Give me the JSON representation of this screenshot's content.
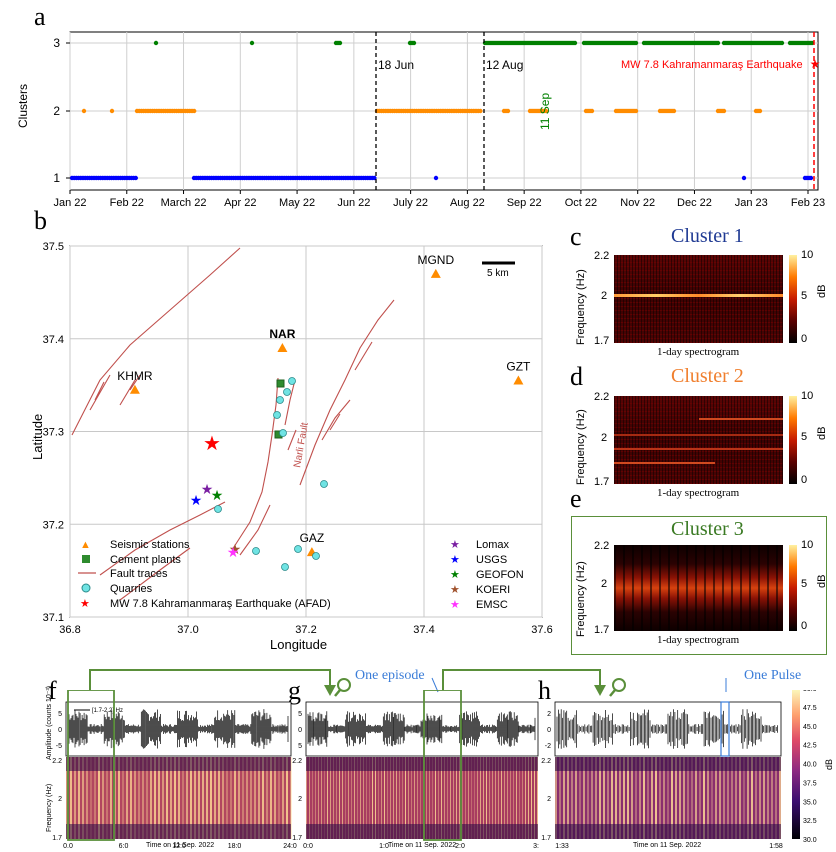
{
  "panels": {
    "a": {
      "label": "a",
      "ylabel": "Clusters",
      "yticks": [
        "1",
        "2",
        "3"
      ],
      "xticks": [
        "Jan 22",
        "Feb 22",
        "March 22",
        "Apr 22",
        "May 22",
        "Jun 22",
        "July 22",
        "Aug 22",
        "Sep 22",
        "Oct 22",
        "Nov 22",
        "Dec 22",
        "Jan 23",
        "Feb 23"
      ],
      "annotations": {
        "jun18": "18 Jun",
        "aug12": "12 Aug",
        "sep11": "11 Sep",
        "eq": "MW 7.8 Kahramanmaraş Earthquake"
      },
      "colors": {
        "c1": "#0000ff",
        "c2": "#ff8c00",
        "c3": "#008000",
        "eq": "#ff0000"
      }
    },
    "b": {
      "label": "b",
      "xlabel": "Longitude",
      "ylabel": "Latitude",
      "xticks": [
        "36.8",
        "37.0",
        "37.2",
        "37.4",
        "37.6"
      ],
      "yticks": [
        "37.5",
        "37.4",
        "37.3",
        "37.2",
        "37.1"
      ],
      "scalebar": "5 km",
      "fault_name": "Narli Fault",
      "stations": [
        {
          "name": "MGND",
          "lon": 37.42,
          "lat": 37.47
        },
        {
          "name": "NAR",
          "lon": 37.16,
          "lat": 37.39
        },
        {
          "name": "GZT",
          "lon": 37.56,
          "lat": 37.355
        },
        {
          "name": "KHMR",
          "lon": 36.91,
          "lat": 37.345
        },
        {
          "name": "GAZ",
          "lon": 37.21,
          "lat": 37.17
        }
      ],
      "legend_left": [
        "Seismic stations",
        "Cement plants",
        "Fault traces",
        "Quarries",
        "MW 7.8 Kahramanmaraş Earthquake (AFAD)"
      ],
      "legend_right": [
        "Lomax",
        "USGS",
        "GEOFON",
        "KOERI",
        "EMSC"
      ]
    },
    "c": {
      "label": "c",
      "title": "Cluster 1",
      "ylabel": "Frequency (Hz)",
      "yticks": [
        "2.2",
        "2",
        "1.7"
      ],
      "cbar_ticks": [
        "10",
        "5",
        "0"
      ],
      "cbar_label": "dB",
      "xlabel": "1-day spectrogram"
    },
    "d": {
      "label": "d",
      "title": "Cluster 2",
      "ylabel": "Frequency (Hz)",
      "yticks": [
        "2.2",
        "2",
        "1.7"
      ],
      "cbar_ticks": [
        "10",
        "5",
        "0"
      ],
      "cbar_label": "dB",
      "xlabel": "1-day spectrogram"
    },
    "e": {
      "label": "e",
      "title": "Cluster 3",
      "ylabel": "Frequency (Hz)",
      "yticks": [
        "2.2",
        "2",
        "1.7"
      ],
      "cbar_ticks": [
        "10",
        "5",
        "0"
      ],
      "cbar_label": "dB",
      "xlabel": "1-day spectrogram"
    },
    "f": {
      "label": "f",
      "amp_label": "Amplitude (counts 10⁻³)",
      "freq_label": "Frequency (Hz)",
      "band": "[1.7-2.2] Hz",
      "amp_ticks": [
        "5",
        "0",
        "-5"
      ],
      "freq_ticks": [
        "2.2",
        "2",
        "1.7"
      ],
      "xticks": [
        "0.0",
        "6:0",
        "12:0",
        "18:0",
        "24:0"
      ],
      "xlabel": "Time on 11 Sep. 2022"
    },
    "g": {
      "label": "g",
      "amp_ticks": [
        "5",
        "0",
        "5"
      ],
      "freq_ticks": [
        "2.2",
        "2",
        "1.7"
      ],
      "xticks": [
        "0:0",
        "1:0",
        "2:0",
        "3:"
      ],
      "xlabel": "Time on 11 Sep. 2022",
      "callout": "One episode"
    },
    "h": {
      "label": "h",
      "amp_ticks": [
        "2",
        "0",
        "-2"
      ],
      "freq_ticks": [
        "2.2",
        "2",
        "1.7"
      ],
      "xticks": [
        "1:33",
        "1:58"
      ],
      "xlabel": "Time on 11 Sep. 2022",
      "callout": "One Pulse",
      "cbar_ticks": [
        "50.0",
        "47.5",
        "45.0",
        "42.5",
        "40.0",
        "37.5",
        "35.0",
        "32.5",
        "30.0"
      ],
      "cbar_label": "dB"
    }
  }
}
